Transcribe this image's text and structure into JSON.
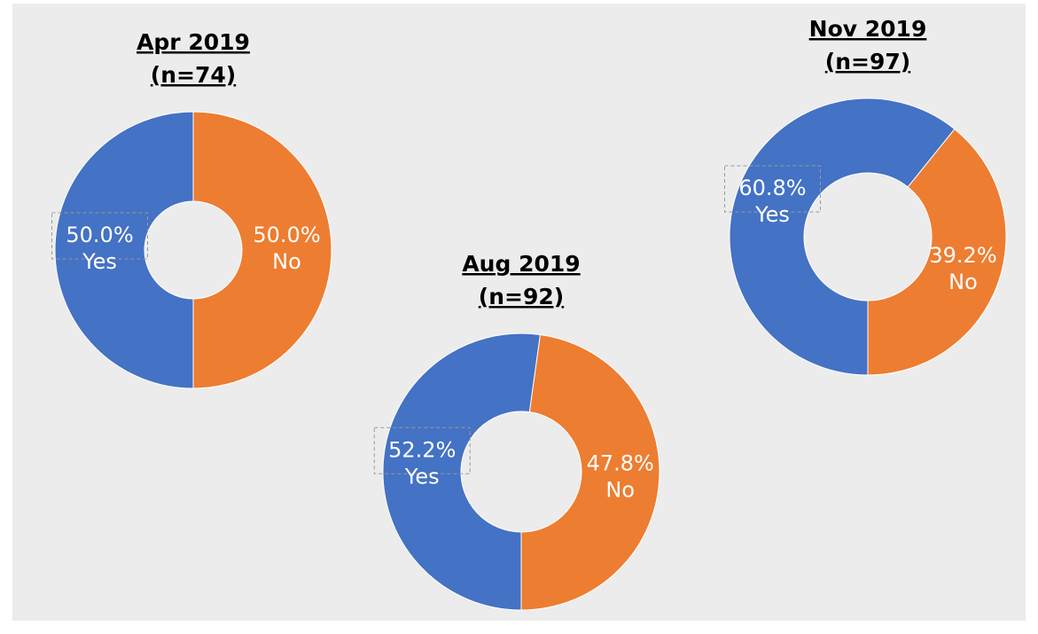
{
  "chart_data": [
    {
      "type": "pie",
      "title": "Apr 2019",
      "subtitle": "(n=74)",
      "categories": [
        "Yes",
        "No"
      ],
      "values": [
        50.0,
        50.0
      ],
      "value_labels": [
        "50.0%",
        "50.0%"
      ],
      "colors": [
        "#4472c4",
        "#ed7d31"
      ]
    },
    {
      "type": "pie",
      "title": "Aug 2019",
      "subtitle": "(n=92)",
      "categories": [
        "Yes",
        "No"
      ],
      "values": [
        52.2,
        47.8
      ],
      "value_labels": [
        "52.2%",
        "47.8%"
      ],
      "colors": [
        "#4472c4",
        "#ed7d31"
      ]
    },
    {
      "type": "pie",
      "title": "Nov 2019",
      "subtitle": "(n=97)",
      "categories": [
        "Yes",
        "No"
      ],
      "values": [
        60.8,
        39.2
      ],
      "value_labels": [
        "60.8%",
        "39.2%"
      ],
      "colors": [
        "#4472c4",
        "#ed7d31"
      ]
    }
  ]
}
